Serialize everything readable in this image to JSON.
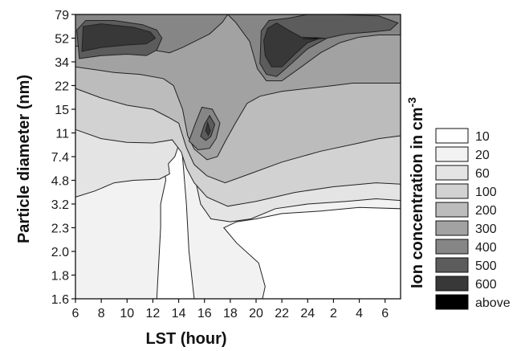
{
  "chart_data": {
    "type": "contour",
    "xlabel": "LST  (hour)",
    "ylabel": "Particle diameter (nm)",
    "colorbar_title": "Ion concentration in cm",
    "colorbar_title_superscript": "-3",
    "x_ticks": [
      "6",
      "8",
      "10",
      "12",
      "14",
      "16",
      "18",
      "20",
      "22",
      "24",
      "2",
      "4",
      "6"
    ],
    "y_ticks": [
      "1.6",
      "1.8",
      "2.0",
      "2.3",
      "3.2",
      "4.8",
      "7.4",
      "11",
      "15",
      "22",
      "34",
      "52",
      "79"
    ],
    "x_range_hours": [
      6,
      31.2
    ],
    "y_range_nm": [
      1.6,
      79
    ],
    "legend": [
      {
        "label": "10",
        "color": "#ffffff"
      },
      {
        "label": "20",
        "color": "#f2f2f2"
      },
      {
        "label": "60",
        "color": "#e4e4e4"
      },
      {
        "label": "100",
        "color": "#d2d2d2"
      },
      {
        "label": "200",
        "color": "#bcbcbc"
      },
      {
        "label": "300",
        "color": "#a2a2a2"
      },
      {
        "label": "400",
        "color": "#868686"
      },
      {
        "label": "500",
        "color": "#5c5c5c"
      },
      {
        "label": "600",
        "color": "#383838"
      },
      {
        "label": "above",
        "color": "#000000"
      }
    ],
    "contour_bands": [
      {
        "level": "20",
        "points": [
          [
            6,
            1.6
          ],
          [
            12.3,
            1.6
          ],
          [
            12.6,
            2.3
          ],
          [
            12.6,
            3.2
          ],
          [
            13,
            4.8
          ],
          [
            12.8,
            7.4
          ],
          [
            13.1,
            11
          ],
          [
            14,
            11
          ],
          [
            14.3,
            7.4
          ],
          [
            14.6,
            3.2
          ],
          [
            14.8,
            2.0
          ],
          [
            15.2,
            1.6
          ],
          [
            20.5,
            1.6
          ],
          [
            20.7,
            1.7
          ],
          [
            20.2,
            1.9
          ],
          [
            18.5,
            2.1
          ],
          [
            17.5,
            2.3
          ],
          [
            18.5,
            2.5
          ],
          [
            20,
            2.6
          ],
          [
            22,
            2.8
          ],
          [
            25,
            2.9
          ],
          [
            28,
            3.05
          ],
          [
            31.2,
            3.0
          ],
          [
            31.2,
            79
          ],
          [
            6,
            79
          ]
        ]
      },
      {
        "level": "60",
        "points": [
          [
            6,
            3.6
          ],
          [
            7.5,
            4.0
          ],
          [
            9,
            4.6
          ],
          [
            10.5,
            4.8
          ],
          [
            12.5,
            4.9
          ],
          [
            13.3,
            5.4
          ],
          [
            13.2,
            6.5
          ],
          [
            13.7,
            7.4
          ],
          [
            14,
            9
          ],
          [
            13.2,
            11
          ],
          [
            14.8,
            7.4
          ],
          [
            15.3,
            4.8
          ],
          [
            15.7,
            3.2
          ],
          [
            16.5,
            2.6
          ],
          [
            18,
            2.5
          ],
          [
            19.6,
            2.6
          ],
          [
            21.5,
            3.0
          ],
          [
            24,
            3.2
          ],
          [
            27,
            3.35
          ],
          [
            29.3,
            3.5
          ],
          [
            31.2,
            3.4
          ],
          [
            31.2,
            79
          ],
          [
            6,
            79
          ]
        ]
      },
      {
        "level": "100",
        "points": [
          [
            6,
            11.5
          ],
          [
            8,
            10
          ],
          [
            10,
            9.4
          ],
          [
            12,
            9.3
          ],
          [
            13.5,
            9.8
          ],
          [
            14.2,
            8
          ],
          [
            14.6,
            6.0
          ],
          [
            15.2,
            4.6
          ],
          [
            16.2,
            3.6
          ],
          [
            17.8,
            3.1
          ],
          [
            20,
            3.35
          ],
          [
            23,
            3.9
          ],
          [
            26,
            4.3
          ],
          [
            29.3,
            4.6
          ],
          [
            31.2,
            4.5
          ],
          [
            31.2,
            79
          ],
          [
            6,
            79
          ]
        ]
      },
      {
        "level": "200",
        "points": [
          [
            6,
            21
          ],
          [
            8,
            18
          ],
          [
            10,
            16
          ],
          [
            12,
            15
          ],
          [
            13.2,
            13.5
          ],
          [
            14,
            12.5
          ],
          [
            14.6,
            8.6
          ],
          [
            15.2,
            6.4
          ],
          [
            16.2,
            5.2
          ],
          [
            17.6,
            4.6
          ],
          [
            19.5,
            5.4
          ],
          [
            22,
            6.7
          ],
          [
            25,
            8.1
          ],
          [
            28,
            9.3
          ],
          [
            29.5,
            10
          ],
          [
            31.2,
            10.5
          ],
          [
            31.2,
            79
          ],
          [
            6,
            79
          ]
        ]
      },
      {
        "level": "300",
        "points": [
          [
            6,
            31
          ],
          [
            9,
            28
          ],
          [
            11,
            27
          ],
          [
            12.8,
            25
          ],
          [
            13.6,
            22
          ],
          [
            14.3,
            15
          ],
          [
            14.7,
            10.5
          ],
          [
            15.2,
            8.4
          ],
          [
            16.2,
            7.0
          ],
          [
            17,
            7.4
          ],
          [
            17.6,
            9.5
          ],
          [
            18.4,
            12.5
          ],
          [
            19.3,
            16.5
          ],
          [
            20.3,
            18.5
          ],
          [
            22,
            20
          ],
          [
            24,
            21
          ],
          [
            26,
            22
          ],
          [
            27.5,
            23
          ],
          [
            31.2,
            23
          ],
          [
            31.2,
            79
          ],
          [
            6,
            79
          ]
        ]
      },
      {
        "level": "400",
        "points": [
          [
            6,
            45
          ],
          [
            8,
            45
          ],
          [
            10,
            44
          ],
          [
            12,
            42
          ],
          [
            13.3,
            40
          ],
          [
            14.3,
            44
          ],
          [
            16.4,
            56
          ],
          [
            17.4,
            69
          ],
          [
            17.8,
            79
          ],
          [
            18.4,
            69
          ],
          [
            19.5,
            49
          ],
          [
            20.1,
            30
          ],
          [
            20.8,
            24
          ],
          [
            22,
            24
          ],
          [
            23.5,
            31
          ],
          [
            25,
            40
          ],
          [
            26.5,
            48
          ],
          [
            28,
            53
          ],
          [
            29.5,
            55
          ],
          [
            31.2,
            55
          ],
          [
            31.2,
            79
          ],
          [
            6,
            79
          ]
        ]
      },
      {
        "level": "400",
        "points": [
          [
            14.8,
            9.6
          ],
          [
            15.3,
            12.5
          ],
          [
            15.8,
            15.5
          ],
          [
            16.6,
            15
          ],
          [
            17.2,
            12.5
          ],
          [
            16.9,
            10
          ],
          [
            16.4,
            8.5
          ],
          [
            15.5,
            8.3
          ]
        ]
      },
      {
        "level": "500",
        "points": [
          [
            6.3,
            36
          ],
          [
            8,
            38
          ],
          [
            10,
            39
          ],
          [
            11.5,
            38
          ],
          [
            12.3,
            42
          ],
          [
            12.7,
            52
          ],
          [
            12.3,
            60
          ],
          [
            11.2,
            66
          ],
          [
            9,
            71
          ],
          [
            6.8,
            71
          ],
          [
            6.1,
            60
          ]
        ]
      },
      {
        "level": "500",
        "points": [
          [
            20.3,
            33
          ],
          [
            20.8,
            27
          ],
          [
            21.6,
            26
          ],
          [
            22.6,
            32
          ],
          [
            24,
            43
          ],
          [
            25.5,
            52
          ],
          [
            27,
            56
          ],
          [
            29,
            58
          ],
          [
            30.4,
            60
          ],
          [
            31,
            68
          ],
          [
            29.5,
            77
          ],
          [
            26,
            79
          ],
          [
            24,
            79
          ],
          [
            22.5,
            74
          ],
          [
            21,
            71
          ],
          [
            20.4,
            59
          ]
        ]
      },
      {
        "level": "500",
        "points": [
          [
            15.7,
            10.4
          ],
          [
            16,
            12.3
          ],
          [
            16.4,
            13.8
          ],
          [
            16.8,
            12.3
          ],
          [
            16.5,
            10.4
          ],
          [
            16.1,
            9.7
          ]
        ]
      },
      {
        "level": "600",
        "points": [
          [
            6.5,
            41
          ],
          [
            8,
            44
          ],
          [
            10,
            46
          ],
          [
            11.5,
            47
          ],
          [
            12.2,
            52
          ],
          [
            11.8,
            58
          ],
          [
            10.5,
            63
          ],
          [
            8,
            67
          ],
          [
            6.6,
            64
          ]
        ]
      },
      {
        "level": "600",
        "points": [
          [
            20.7,
            38
          ],
          [
            21.2,
            31
          ],
          [
            22,
            31
          ],
          [
            23,
            39
          ],
          [
            24,
            48
          ],
          [
            25,
            52
          ],
          [
            23.5,
            53
          ],
          [
            22.5,
            60
          ],
          [
            21.6,
            68
          ],
          [
            20.9,
            62
          ],
          [
            20.6,
            50
          ]
        ]
      },
      {
        "level": "600",
        "points": [
          [
            16.1,
            11.3
          ],
          [
            16.25,
            12.6
          ],
          [
            16.45,
            11.3
          ],
          [
            16.3,
            10.6
          ]
        ]
      },
      {
        "level": "above",
        "points": [
          [
            23.6,
            51.5
          ],
          [
            24.6,
            52.5
          ],
          [
            25.4,
            51.8
          ],
          [
            24.4,
            51
          ]
        ]
      }
    ]
  }
}
